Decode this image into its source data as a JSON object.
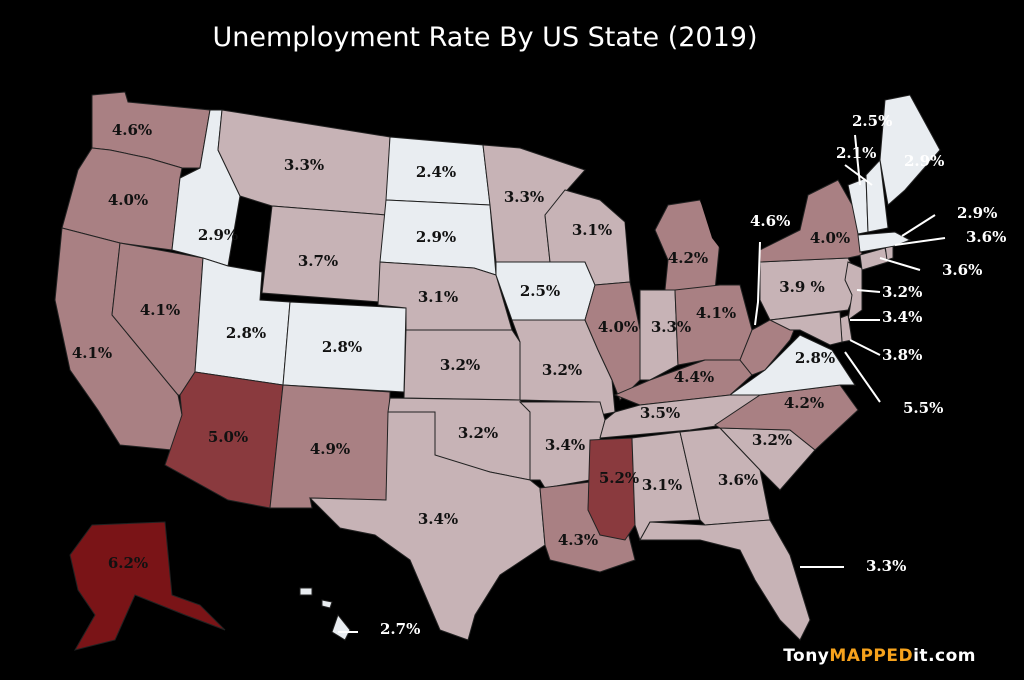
{
  "title": "Unemployment Rate By US State (2019)",
  "credit": {
    "prefix": "Tony",
    "highlight": "MAPPED",
    "suffix": "it.com"
  },
  "colors": {
    "background": "#000000",
    "level_1": "#e9edf1",
    "level_2": "#c7b3b6",
    "level_3": "#a98083",
    "level_4": "#8a3a3e",
    "level_5": "#7a1417"
  },
  "states": [
    {
      "id": "WA",
      "rate": "4.6%",
      "level": 3
    },
    {
      "id": "OR",
      "rate": "4.0%",
      "level": 3
    },
    {
      "id": "CA",
      "rate": "4.1%",
      "level": 3
    },
    {
      "id": "NV",
      "rate": "4.1%",
      "level": 3
    },
    {
      "id": "ID",
      "rate": "2.9%",
      "level": 1
    },
    {
      "id": "MT",
      "rate": "3.3%",
      "level": 2
    },
    {
      "id": "WY",
      "rate": "3.7%",
      "level": 2
    },
    {
      "id": "UT",
      "rate": "2.8%",
      "level": 1
    },
    {
      "id": "CO",
      "rate": "2.8%",
      "level": 1
    },
    {
      "id": "AZ",
      "rate": "5.0%",
      "level": 4
    },
    {
      "id": "NM",
      "rate": "4.9%",
      "level": 3
    },
    {
      "id": "ND",
      "rate": "2.4%",
      "level": 1
    },
    {
      "id": "SD",
      "rate": "2.9%",
      "level": 1
    },
    {
      "id": "NE",
      "rate": "3.1%",
      "level": 2
    },
    {
      "id": "KS",
      "rate": "3.2%",
      "level": 2
    },
    {
      "id": "OK",
      "rate": "3.2%",
      "level": 2
    },
    {
      "id": "TX",
      "rate": "3.4%",
      "level": 2
    },
    {
      "id": "MN",
      "rate": "3.3%",
      "level": 2
    },
    {
      "id": "IA",
      "rate": "2.5%",
      "level": 1
    },
    {
      "id": "MO",
      "rate": "3.2%",
      "level": 2
    },
    {
      "id": "AR",
      "rate": "3.4%",
      "level": 2
    },
    {
      "id": "LA",
      "rate": "4.3%",
      "level": 3
    },
    {
      "id": "WI",
      "rate": "3.1%",
      "level": 2
    },
    {
      "id": "IL",
      "rate": "4.0%",
      "level": 3
    },
    {
      "id": "MI",
      "rate": "4.2%",
      "level": 3
    },
    {
      "id": "IN",
      "rate": "3.3%",
      "level": 2
    },
    {
      "id": "OH",
      "rate": "4.1%",
      "level": 3
    },
    {
      "id": "KY",
      "rate": "4.4%",
      "level": 3
    },
    {
      "id": "TN",
      "rate": "3.5%",
      "level": 2
    },
    {
      "id": "MS",
      "rate": "5.2%",
      "level": 4
    },
    {
      "id": "AL",
      "rate": "3.1%",
      "level": 2
    },
    {
      "id": "GA",
      "rate": "3.6%",
      "level": 2
    },
    {
      "id": "FL",
      "rate": "3.3%",
      "level": 2
    },
    {
      "id": "SC",
      "rate": "3.2%",
      "level": 2
    },
    {
      "id": "NC",
      "rate": "4.2%",
      "level": 3
    },
    {
      "id": "VA",
      "rate": "2.8%",
      "level": 1
    },
    {
      "id": "WV",
      "rate": "4.6%",
      "level": 3
    },
    {
      "id": "PA",
      "rate": "3.9 %",
      "level": 2
    },
    {
      "id": "NY",
      "rate": "4.0%",
      "level": 3
    },
    {
      "id": "NJ",
      "rate": "3.2%",
      "level": 2
    },
    {
      "id": "DE",
      "rate": "3.4%",
      "level": 2
    },
    {
      "id": "MD",
      "rate": "3.8%",
      "level": 2
    },
    {
      "id": "DC",
      "rate": "5.5%",
      "level": 4
    },
    {
      "id": "CT",
      "rate": "3.6%",
      "level": 2
    },
    {
      "id": "RI",
      "rate": "3.6%",
      "level": 2
    },
    {
      "id": "MA",
      "rate": "2.9%",
      "level": 1
    },
    {
      "id": "VT",
      "rate": "2.5%",
      "level": 1
    },
    {
      "id": "NH",
      "rate": "2.1%",
      "level": 1
    },
    {
      "id": "ME",
      "rate": "2.9%",
      "level": 1
    },
    {
      "id": "AK",
      "rate": "6.2%",
      "level": 5
    },
    {
      "id": "HI",
      "rate": "2.7%",
      "level": 1
    }
  ]
}
